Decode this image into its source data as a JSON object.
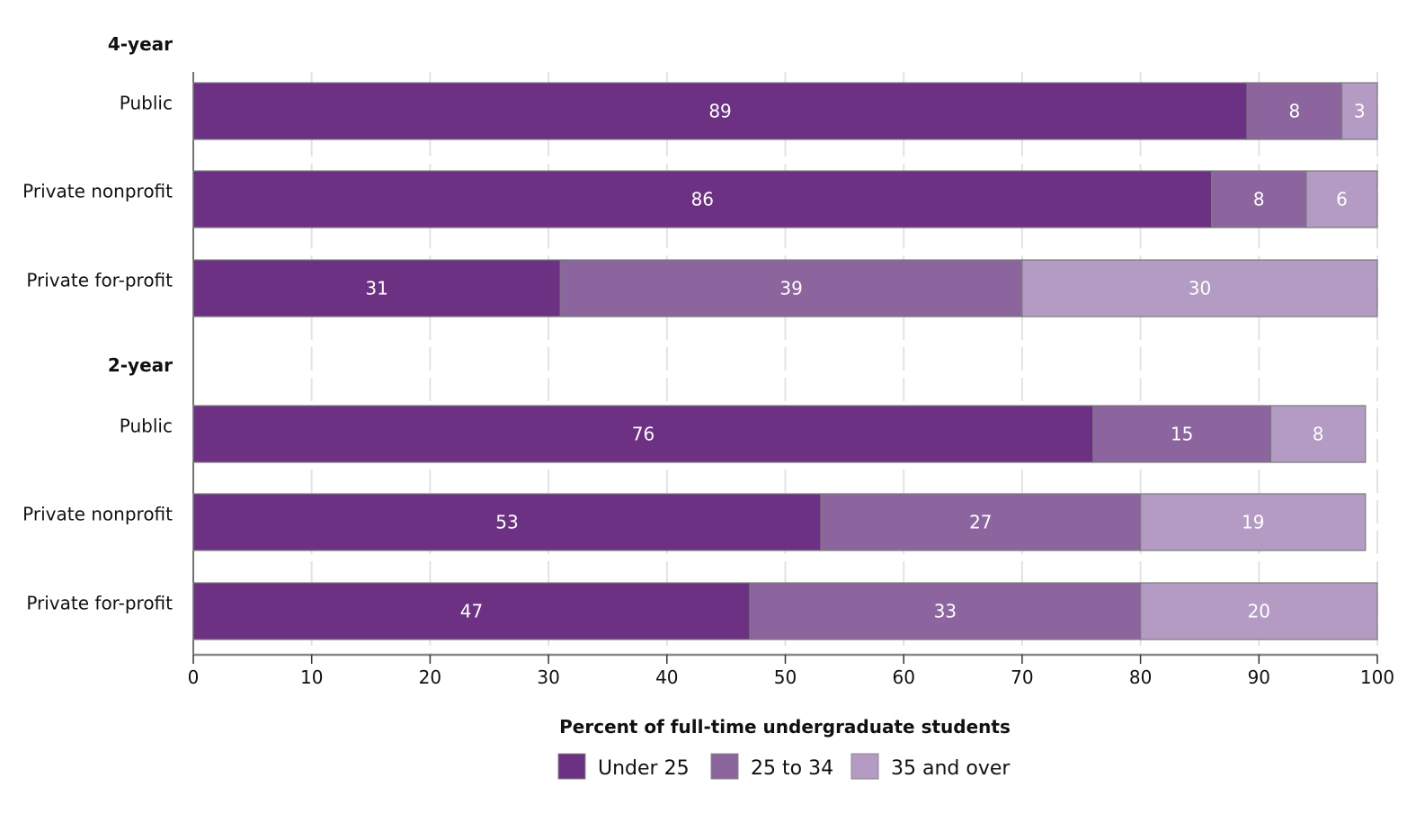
{
  "chart_data": {
    "type": "bar",
    "orientation": "horizontal",
    "stacked": true,
    "xlabel": "Percent of full-time undergraduate students",
    "xlim": [
      0,
      100
    ],
    "xticks": [
      0,
      10,
      20,
      30,
      40,
      50,
      60,
      70,
      80,
      90,
      100
    ],
    "grid": "vertical dashed",
    "legend_position": "bottom",
    "groups": [
      {
        "label": "4-year",
        "categories": [
          "Public",
          "Private nonprofit",
          "Private for-profit"
        ]
      },
      {
        "label": "2-year",
        "categories": [
          "Public",
          "Private nonprofit",
          "Private for-profit"
        ]
      }
    ],
    "series": [
      {
        "name": "Under 25",
        "color": "#6c3183",
        "values": [
          89,
          86,
          31,
          76,
          53,
          47
        ]
      },
      {
        "name": "25 to 34",
        "color": "#8c659f",
        "values": [
          8,
          8,
          39,
          15,
          27,
          33
        ]
      },
      {
        "name": "35 and over",
        "color": "#b39bc3",
        "values": [
          3,
          6,
          30,
          8,
          19,
          20
        ]
      }
    ]
  }
}
